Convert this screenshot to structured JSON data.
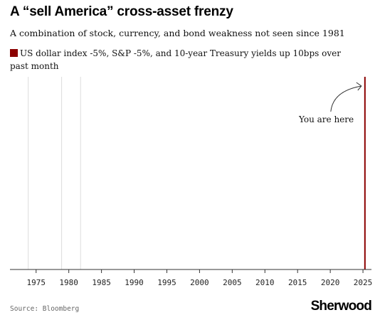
{
  "chart_data": {
    "type": "bar",
    "title": "A “sell America” cross-asset frenzy",
    "subtitle": "A combination of stock, currency, and bond weakness not seen since 1981",
    "series": [
      {
        "name": "US dollar index -5%, S&P -5%, and 10-year Treasury yields up 10bps over past month",
        "color": "#8b0000",
        "events": [
          2025.3
        ]
      }
    ],
    "background_events": {
      "color": "#dddddd",
      "x": [
        1973.8,
        1978.9,
        1981.8
      ]
    },
    "xlim": [
      1971,
      2026.3
    ],
    "x_ticks": [
      1975,
      1980,
      1985,
      1990,
      1995,
      2000,
      2005,
      2010,
      2015,
      2020,
      2025
    ],
    "x_tick_labels": [
      "1975",
      "1980",
      "1985",
      "1990",
      "1995",
      "2000",
      "2005",
      "2010",
      "2015",
      "2020",
      "2025"
    ],
    "annotation": "You are here",
    "source": "Source: Bloomberg",
    "grid": false,
    "legend_position": "top-left"
  },
  "brand": "Sherwood"
}
